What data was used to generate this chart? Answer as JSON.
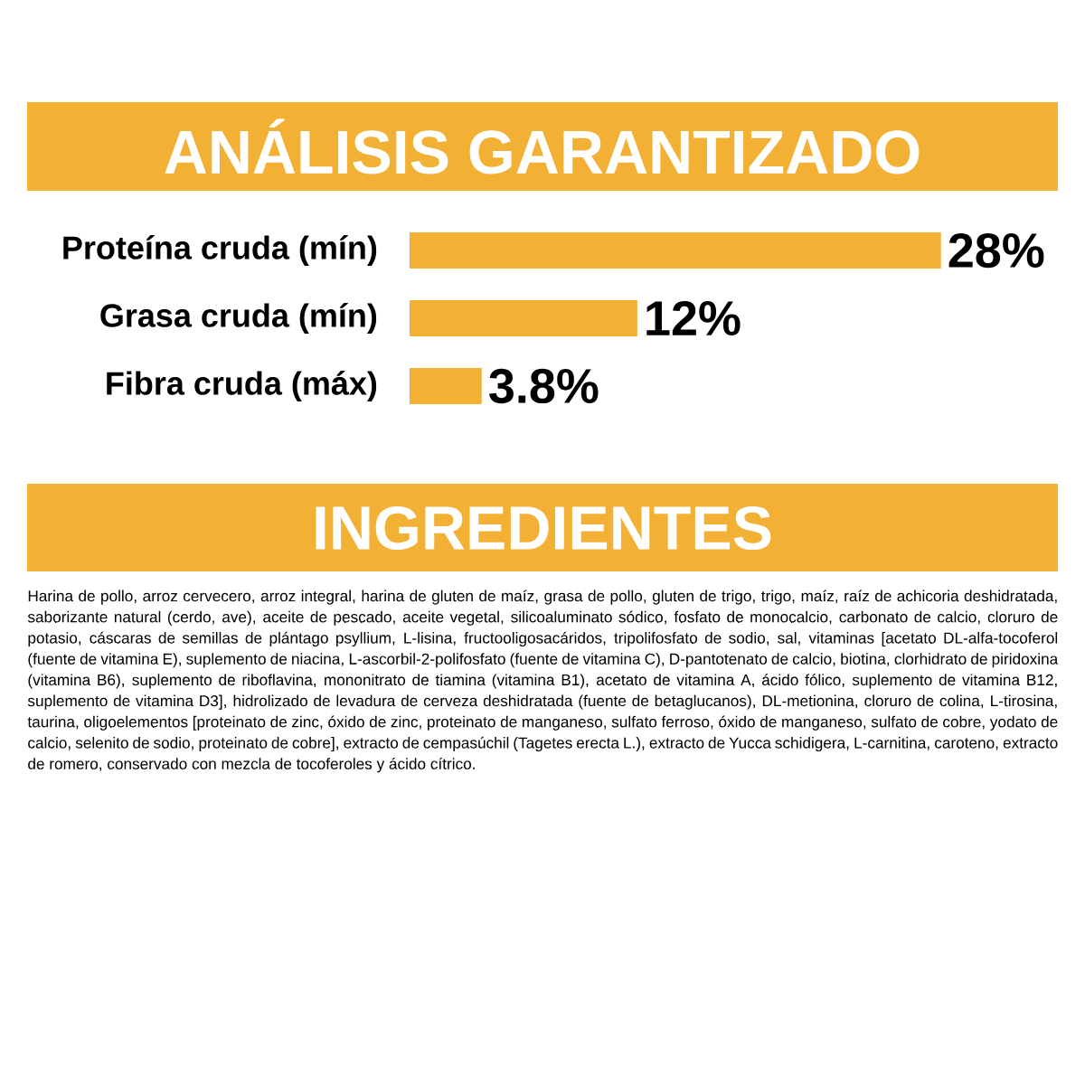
{
  "chart_data": {
    "type": "bar",
    "orientation": "horizontal",
    "title": "ANÁLISIS GARANTIZADO",
    "categories": [
      "Proteína cruda (mín)",
      "Grasa cruda (mín)",
      "Fibra cruda (máx)"
    ],
    "values": [
      28,
      12,
      3.8
    ],
    "value_labels": [
      "28%",
      "12%",
      "3.8%"
    ],
    "data_labels": true,
    "color": "#f2b035",
    "annotations": [
      "INGREDIENTES",
      "Harina de pollo, arroz cervecero, arroz integral, harina de gluten de maíz, grasa de pollo, gluten de trigo, trigo, maíz, raíz de achicoria deshidratada, saborizante natural (cerdo, ave), aceite de pescado, aceite vegetal, silicoaluminato sódico, fosfato de monocalcio, carbonato de calcio, cloruro de potasio, cáscaras de semillas de plántago psyllium, L-lisina, fructooligosacáridos, tripolifosfato de sodio, sal, vitaminas [acetato DL-alfa-tocoferol (fuente de vitamina E), suplemento de niacina, L-ascorbil-2-polifosfato (fuente de vitamina C), D-pantotenato de calcio, biotina, clorhidrato de piridoxina (vitamina B6), suplemento de riboflavina, mononitrato de tiamina (vitamina B1), acetato de vitamina A, ácido fólico, suplemento de vitamina B12, suplemento de vitamina D3], hidrolizado de levadura de cerveza deshidratada (fuente de betaglucanos), DL-metionina, cloruro de colina, L-tirosina, taurina, oligoelementos [proteinato de zinc, óxido de zinc, proteinato de manganeso, sulfato ferroso, óxido de manganeso, sulfato de cobre, yodato de calcio, selenito de sodio, proteinato de cobre], extracto de cempasúchil (Tagetes erecta L.), extracto de Yucca schidigera, L-carnitina, caroteno, extracto de romero, conservado con mezcla de tocoferoles y ácido cítrico."
    ]
  }
}
